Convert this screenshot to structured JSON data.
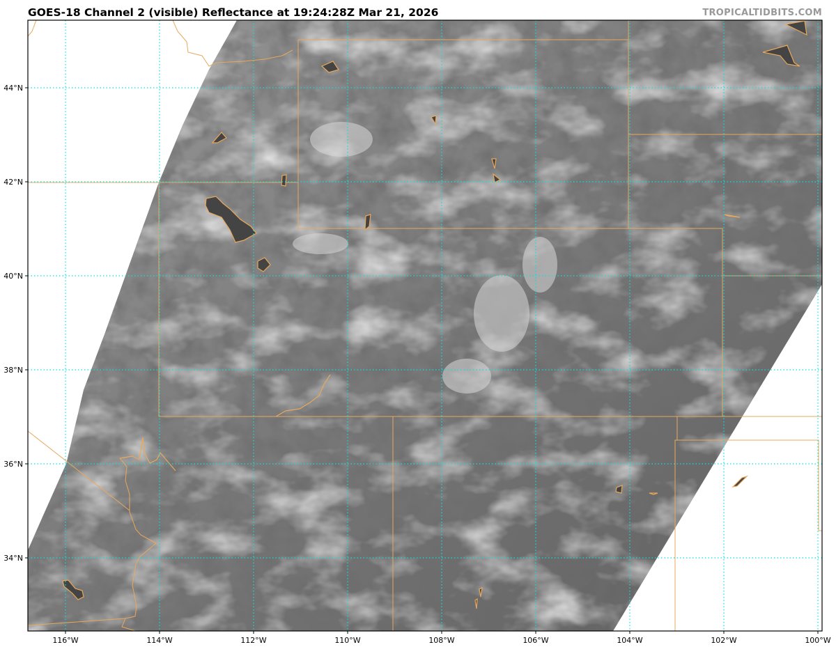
{
  "header": {
    "title": "GOES-18 Channel 2 (visible) Reflectance at 19:24:28Z Mar 21, 2026",
    "credit": "TROPICALTIDBITS.COM"
  },
  "map": {
    "product": "visible reflectance (grayscale)",
    "lat_range": [
      32.5,
      45.4
    ],
    "lon_range": [
      -116.8,
      -99.9
    ],
    "gridline_color": "#00e5e5",
    "border_color": "#e8a85c",
    "lat_labels": [
      {
        "value": 44,
        "label": "44°N"
      },
      {
        "value": 42,
        "label": "42°N"
      },
      {
        "value": 40,
        "label": "40°N"
      },
      {
        "value": 38,
        "label": "38°N"
      },
      {
        "value": 36,
        "label": "36°N"
      },
      {
        "value": 34,
        "label": "34°N"
      }
    ],
    "lon_labels": [
      {
        "value": -116,
        "label": "116°W"
      },
      {
        "value": -114,
        "label": "114°W"
      },
      {
        "value": -112,
        "label": "112°W"
      },
      {
        "value": -110,
        "label": "110°W"
      },
      {
        "value": -108,
        "label": "108°W"
      },
      {
        "value": -106,
        "label": "106°W"
      },
      {
        "value": -104,
        "label": "104°W"
      },
      {
        "value": -102,
        "label": "102°W"
      },
      {
        "value": -100,
        "label": "100°W"
      }
    ]
  }
}
